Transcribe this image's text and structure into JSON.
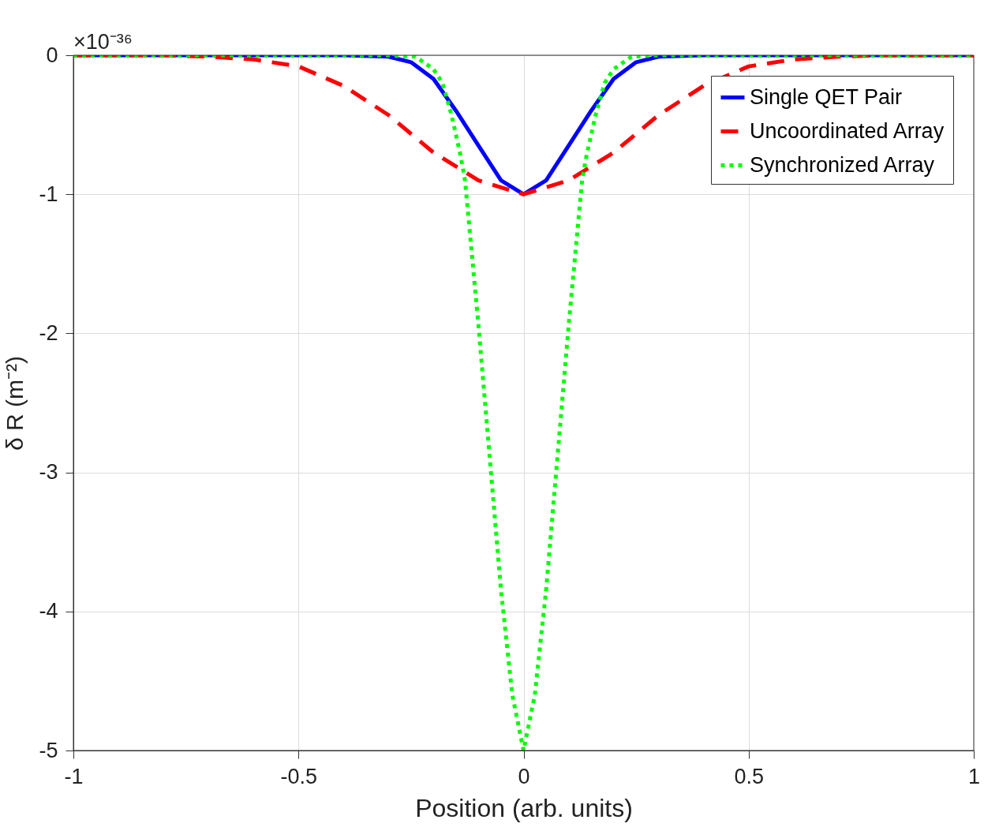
{
  "chart_data": {
    "type": "line",
    "xlabel": "Position (arb. units)",
    "ylabel": "δ R (m⁻²)",
    "annotations": [
      "×10⁻³⁶"
    ],
    "xlim": [
      -1,
      1
    ],
    "ylim": [
      -5,
      0
    ],
    "xticks": [
      -1,
      -0.5,
      0,
      0.5,
      1
    ],
    "yticks": [
      -5,
      -4,
      -3,
      -2,
      -1,
      0
    ],
    "grid": true,
    "legend": "top right",
    "marker": "none",
    "series": [
      {
        "name": "Single QET Pair",
        "color": "#0000ff",
        "line_style": "solid",
        "x": [
          -1,
          -0.4,
          -0.3,
          -0.25,
          -0.2,
          -0.15,
          -0.1,
          -0.05,
          0,
          0.05,
          0.1,
          0.15,
          0.2,
          0.25,
          0.3,
          0.4,
          1
        ],
        "values": [
          0,
          0,
          -0.01,
          -0.05,
          -0.17,
          -0.4,
          -0.65,
          -0.9,
          -1,
          -0.9,
          -0.65,
          -0.4,
          -0.17,
          -0.05,
          -0.01,
          0,
          0
        ]
      },
      {
        "name": "Uncoordinated Array",
        "color": "#ff0000",
        "line_style": "dashed",
        "x": [
          -1,
          -0.8,
          -0.7,
          -0.6,
          -0.5,
          -0.4,
          -0.3,
          -0.2,
          -0.1,
          0,
          0.1,
          0.2,
          0.3,
          0.4,
          0.5,
          0.6,
          0.7,
          0.8,
          1
        ],
        "values": [
          0,
          0,
          -0.01,
          -0.03,
          -0.08,
          -0.22,
          -0.43,
          -0.7,
          -0.9,
          -1,
          -0.9,
          -0.7,
          -0.43,
          -0.22,
          -0.08,
          -0.03,
          -0.01,
          0,
          0
        ]
      },
      {
        "name": "Synchronized Array",
        "color": "#00ff00",
        "line_style": "dotted",
        "x": [
          -1,
          -0.3,
          -0.24,
          -0.2,
          -0.18,
          -0.16,
          -0.14,
          -0.13,
          -0.1,
          -0.075,
          -0.05,
          -0.025,
          0,
          0.025,
          0.05,
          0.075,
          0.1,
          0.13,
          0.14,
          0.16,
          0.18,
          0.2,
          0.24,
          0.3,
          1
        ],
        "values": [
          0,
          0,
          -0.01,
          -0.1,
          -0.2,
          -0.43,
          -0.72,
          -0.9,
          -1.95,
          -2.9,
          -3.85,
          -4.6,
          -5,
          -4.6,
          -3.85,
          -2.9,
          -1.95,
          -0.9,
          -0.72,
          -0.43,
          -0.2,
          -0.1,
          -0.01,
          0,
          0
        ]
      }
    ]
  }
}
